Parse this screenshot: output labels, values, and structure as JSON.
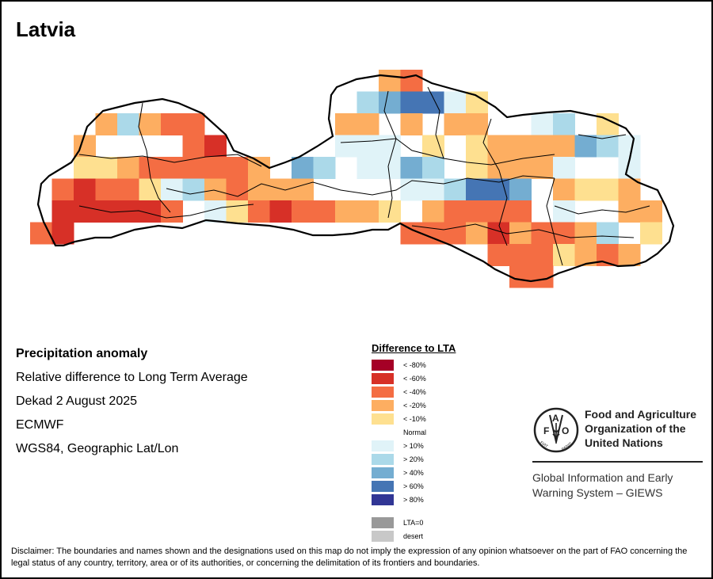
{
  "title": "Latvia",
  "info": {
    "product": "Precipitation anomaly",
    "description": "Relative difference to Long Term Average",
    "period": "Dekad 2 August 2025",
    "source": "ECMWF",
    "projection": "WGS84, Geographic Lat/Lon"
  },
  "legend": {
    "title": "Difference to LTA",
    "classes": [
      {
        "key": "m80",
        "label": "< -80%",
        "color": "#a50026"
      },
      {
        "key": "m60",
        "label": "< -60%",
        "color": "#d73027"
      },
      {
        "key": "m40",
        "label": "< -40%",
        "color": "#f46d43"
      },
      {
        "key": "m20",
        "label": "< -20%",
        "color": "#fdae61"
      },
      {
        "key": "m10",
        "label": "< -10%",
        "color": "#fee090"
      },
      {
        "key": "n",
        "label": "Normal",
        "color": "#ffffff"
      },
      {
        "key": "p10",
        "label": "> 10%",
        "color": "#e0f3f8"
      },
      {
        "key": "p20",
        "label": "> 20%",
        "color": "#abd9e9"
      },
      {
        "key": "p40",
        "label": "> 40%",
        "color": "#74add1"
      },
      {
        "key": "p60",
        "label": "> 60%",
        "color": "#4575b4"
      },
      {
        "key": "p80",
        "label": "> 80%",
        "color": "#313695"
      }
    ],
    "extra": [
      {
        "key": "lta0",
        "label": "LTA=0",
        "color": "#999999"
      },
      {
        "key": "desert",
        "label": "desert",
        "color": "#c8c8c8"
      }
    ]
  },
  "map_grid": {
    "description": "Gridded anomaly classes by row (north to south) and column (west to east)",
    "rows": [
      {
        "row": 0,
        "cells": {
          "16": "m20",
          "17": "m40"
        }
      },
      {
        "row": 1,
        "cells": {
          "15": "p20",
          "16": "p40",
          "17": "p60",
          "18": "p60",
          "19": "p10",
          "20": "m10"
        }
      },
      {
        "row": 2,
        "cells": {
          "3": "m20",
          "4": "p20",
          "5": "m20",
          "6": "m40",
          "7": "m40",
          "14": "m20",
          "15": "m20",
          "17": "m20",
          "19": "m20",
          "20": "m20",
          "23": "p10",
          "24": "p20",
          "26": "m10"
        }
      },
      {
        "row": 3,
        "cells": {
          "2": "m20",
          "7": "m40",
          "8": "m60",
          "14": "p10",
          "15": "p10",
          "16": "p10",
          "18": "m10",
          "20": "m10",
          "21": "m20",
          "22": "m20",
          "23": "m20",
          "24": "m20",
          "25": "p40",
          "26": "p20",
          "27": "p10"
        }
      },
      {
        "row": 4,
        "cells": {
          "2": "m10",
          "3": "m10",
          "4": "m20",
          "5": "m40",
          "6": "m40",
          "7": "m40",
          "8": "m40",
          "9": "m40",
          "10": "m20",
          "12": "p40",
          "13": "p20",
          "15": "p10",
          "16": "p10",
          "17": "p40",
          "18": "p20",
          "20": "m10",
          "21": "m20",
          "22": "m20",
          "23": "m20",
          "24": "p10",
          "27": "p10"
        }
      },
      {
        "row": 5,
        "cells": {
          "1": "m40",
          "2": "m60",
          "3": "m40",
          "4": "m40",
          "5": "m10",
          "6": "p10",
          "7": "p20",
          "8": "m20",
          "9": "m40",
          "10": "m20",
          "11": "m20",
          "12": "m20",
          "17": "p10",
          "18": "p10",
          "19": "p20",
          "20": "p60",
          "21": "p60",
          "22": "p40",
          "24": "m20",
          "25": "m10",
          "26": "m10",
          "27": "m20"
        }
      },
      {
        "row": 6,
        "cells": {
          "1": "m60",
          "2": "m60",
          "3": "m60",
          "4": "m60",
          "5": "m60",
          "6": "m40",
          "8": "p10",
          "9": "m10",
          "10": "m40",
          "11": "m60",
          "12": "m40",
          "13": "m40",
          "14": "m20",
          "15": "m20",
          "16": "m10",
          "18": "m20",
          "19": "m40",
          "20": "m40",
          "21": "m40",
          "22": "m40",
          "24": "p10",
          "27": "m20",
          "28": "m20"
        }
      },
      {
        "row": 7,
        "cells": {
          "0": "m40",
          "1": "m60",
          "17": "m40",
          "18": "m40",
          "19": "m40",
          "20": "m20",
          "21": "m60",
          "22": "m20",
          "23": "m40",
          "24": "m40",
          "25": "m20",
          "26": "p20",
          "28": "m10"
        }
      },
      {
        "row": 8,
        "cells": {
          "21": "m40",
          "22": "m40",
          "23": "m40",
          "24": "m10",
          "25": "m20",
          "26": "m40",
          "27": "m20"
        }
      },
      {
        "row": 9,
        "cells": {
          "22": "m40",
          "23": "m40"
        }
      }
    ]
  },
  "logo": {
    "org_line1": "Food and Agriculture",
    "org_line2": "Organization of the",
    "org_line3": "United Nations",
    "letters": {
      "f": "F",
      "a": "A",
      "o": "O"
    },
    "motto": "FIAT PANIS",
    "giews_line1": "Global Information and Early",
    "giews_line2": "Warning System – GIEWS"
  },
  "disclaimer": "Disclaimer: The boundaries and names shown and the designations used on this map do not imply the expression of any opinion whatsoever on the part of FAO concerning the legal status of any country, territory, area or of its authorities, or concerning the delimitation of its frontiers and boundaries."
}
